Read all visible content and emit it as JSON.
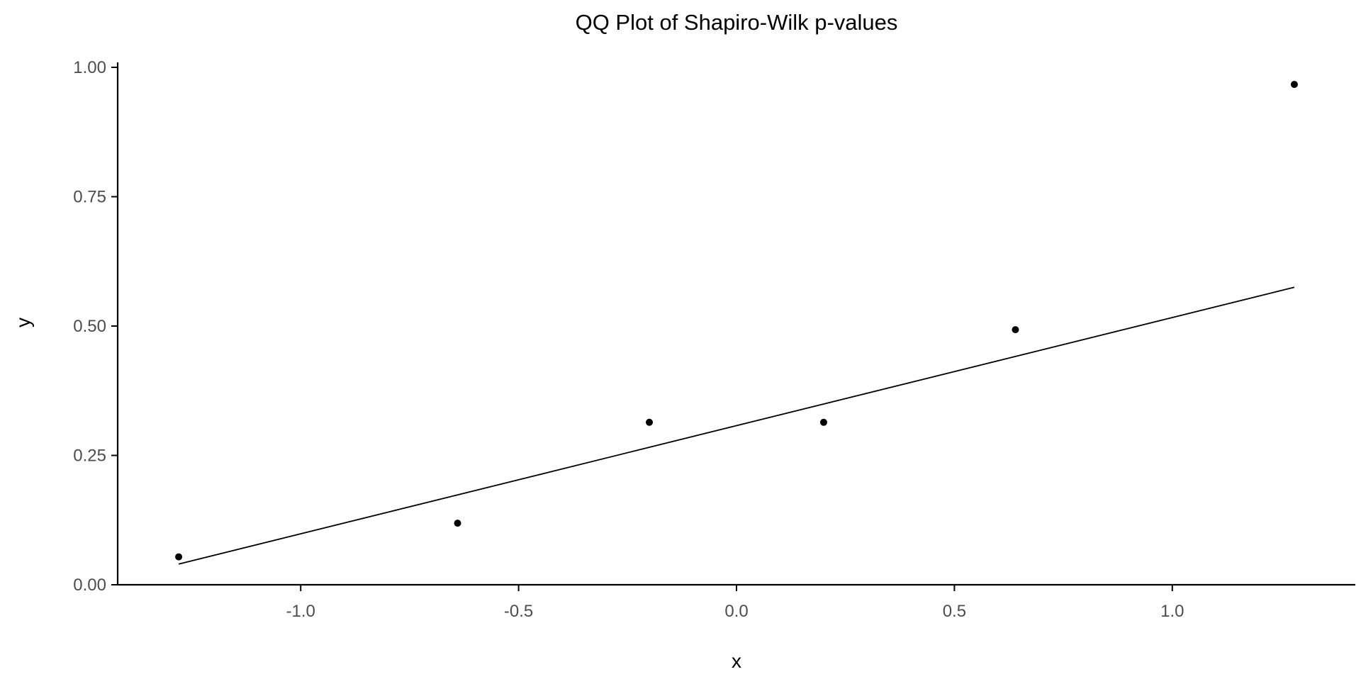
{
  "chart_data": {
    "type": "scatter",
    "title": "QQ Plot of Shapiro-Wilk p-values",
    "xlabel": "x",
    "ylabel": "y",
    "xlim": [
      -1.42,
      1.42
    ],
    "ylim": [
      0,
      1.0
    ],
    "x_ticks": [
      -1.0,
      -0.5,
      0.0,
      0.5,
      1.0
    ],
    "x_tick_labels": [
      "-1.0",
      "-0.5",
      "0.0",
      "0.5",
      "1.0"
    ],
    "y_ticks": [
      0.0,
      0.25,
      0.5,
      0.75,
      1.0
    ],
    "y_tick_labels": [
      "0.00",
      "0.25",
      "0.50",
      "0.75",
      "1.00"
    ],
    "grid": false,
    "series": [
      {
        "points": [
          {
            "x": -1.28,
            "y": 0.054
          },
          {
            "x": -0.64,
            "y": 0.119
          },
          {
            "x": -0.2,
            "y": 0.314
          },
          {
            "x": 0.2,
            "y": 0.314
          },
          {
            "x": 0.64,
            "y": 0.493
          },
          {
            "x": 1.28,
            "y": 0.967
          }
        ]
      }
    ],
    "reference_line": {
      "x1": -1.28,
      "y1": 0.04,
      "x2": 1.28,
      "y2": 0.575
    },
    "colors": {
      "points": "#000000",
      "line": "#000000",
      "axis": "#000000",
      "tick_label": "#4d4d4d"
    }
  }
}
